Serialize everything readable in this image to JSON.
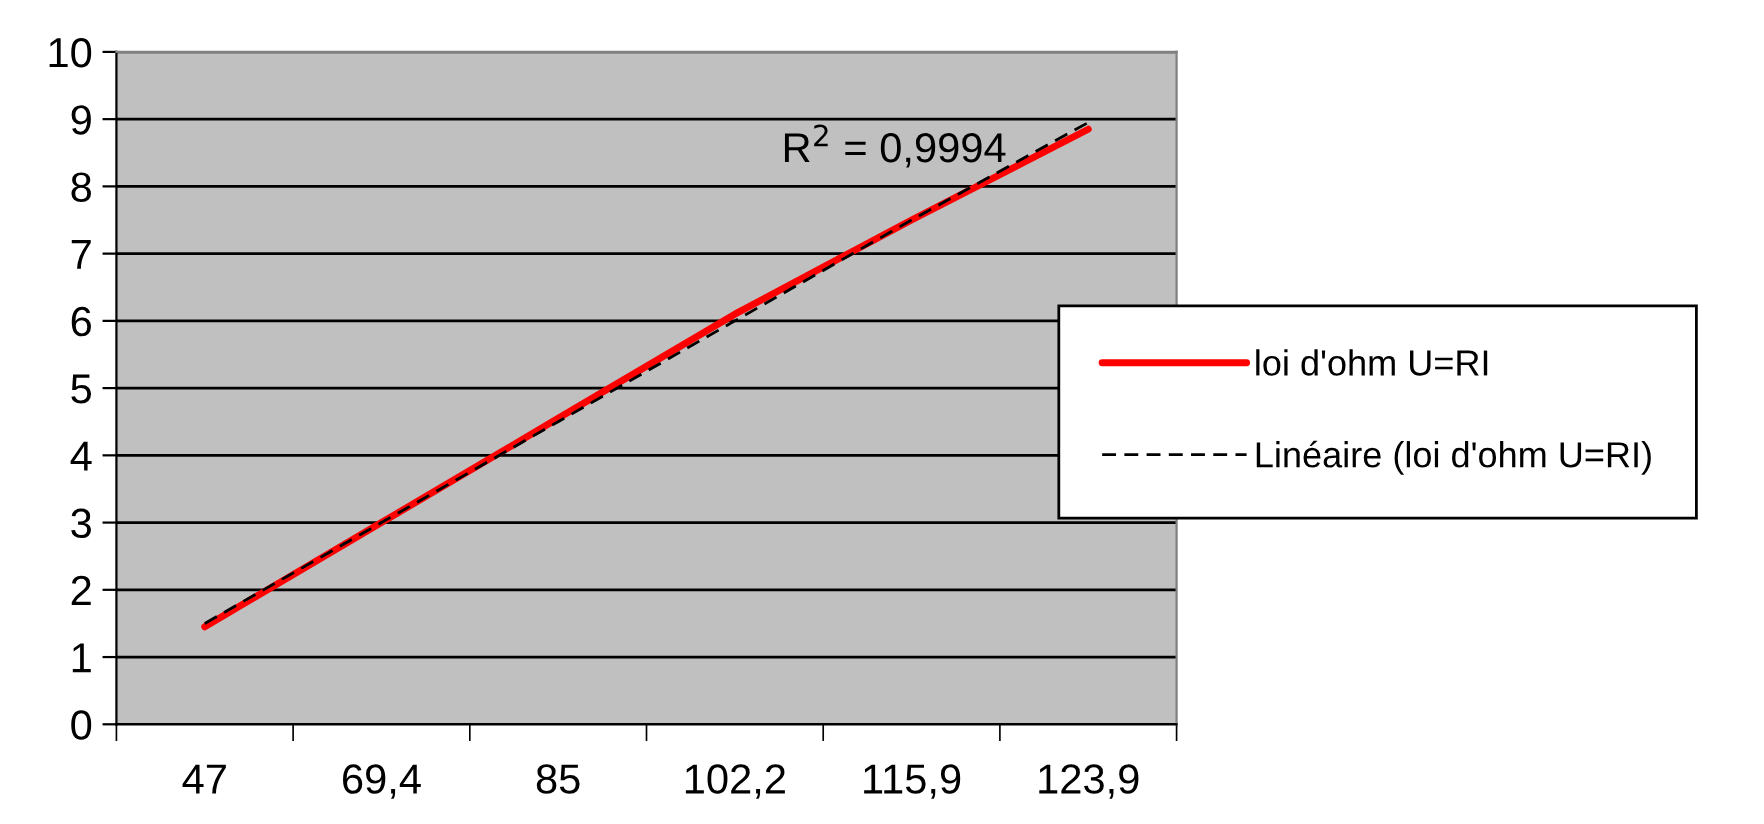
{
  "chart_data": {
    "type": "line",
    "categories": [
      "47",
      "69,4",
      "85",
      "102,2",
      "115,9",
      "123,9"
    ],
    "series": [
      {
        "name": "loi d'ohm U=RI",
        "color": "#ff0000",
        "values": [
          1.45,
          3.0,
          4.55,
          6.1,
          7.5,
          8.85
        ],
        "line_style": "solid"
      },
      {
        "name": "Linéaire (loi d'ohm U=RI)",
        "color": "#000000",
        "values": [
          1.5,
          3.0,
          4.5,
          6.0,
          7.5,
          8.95
        ],
        "line_style": "dashed"
      }
    ],
    "ylim": [
      0,
      10
    ],
    "yticks": [
      0,
      1,
      2,
      3,
      4,
      5,
      6,
      7,
      8,
      9,
      10
    ],
    "grid": "y",
    "legend": "right",
    "marker": "none",
    "annotations": [
      "R$^{2}$ = 0,9994"
    ]
  }
}
